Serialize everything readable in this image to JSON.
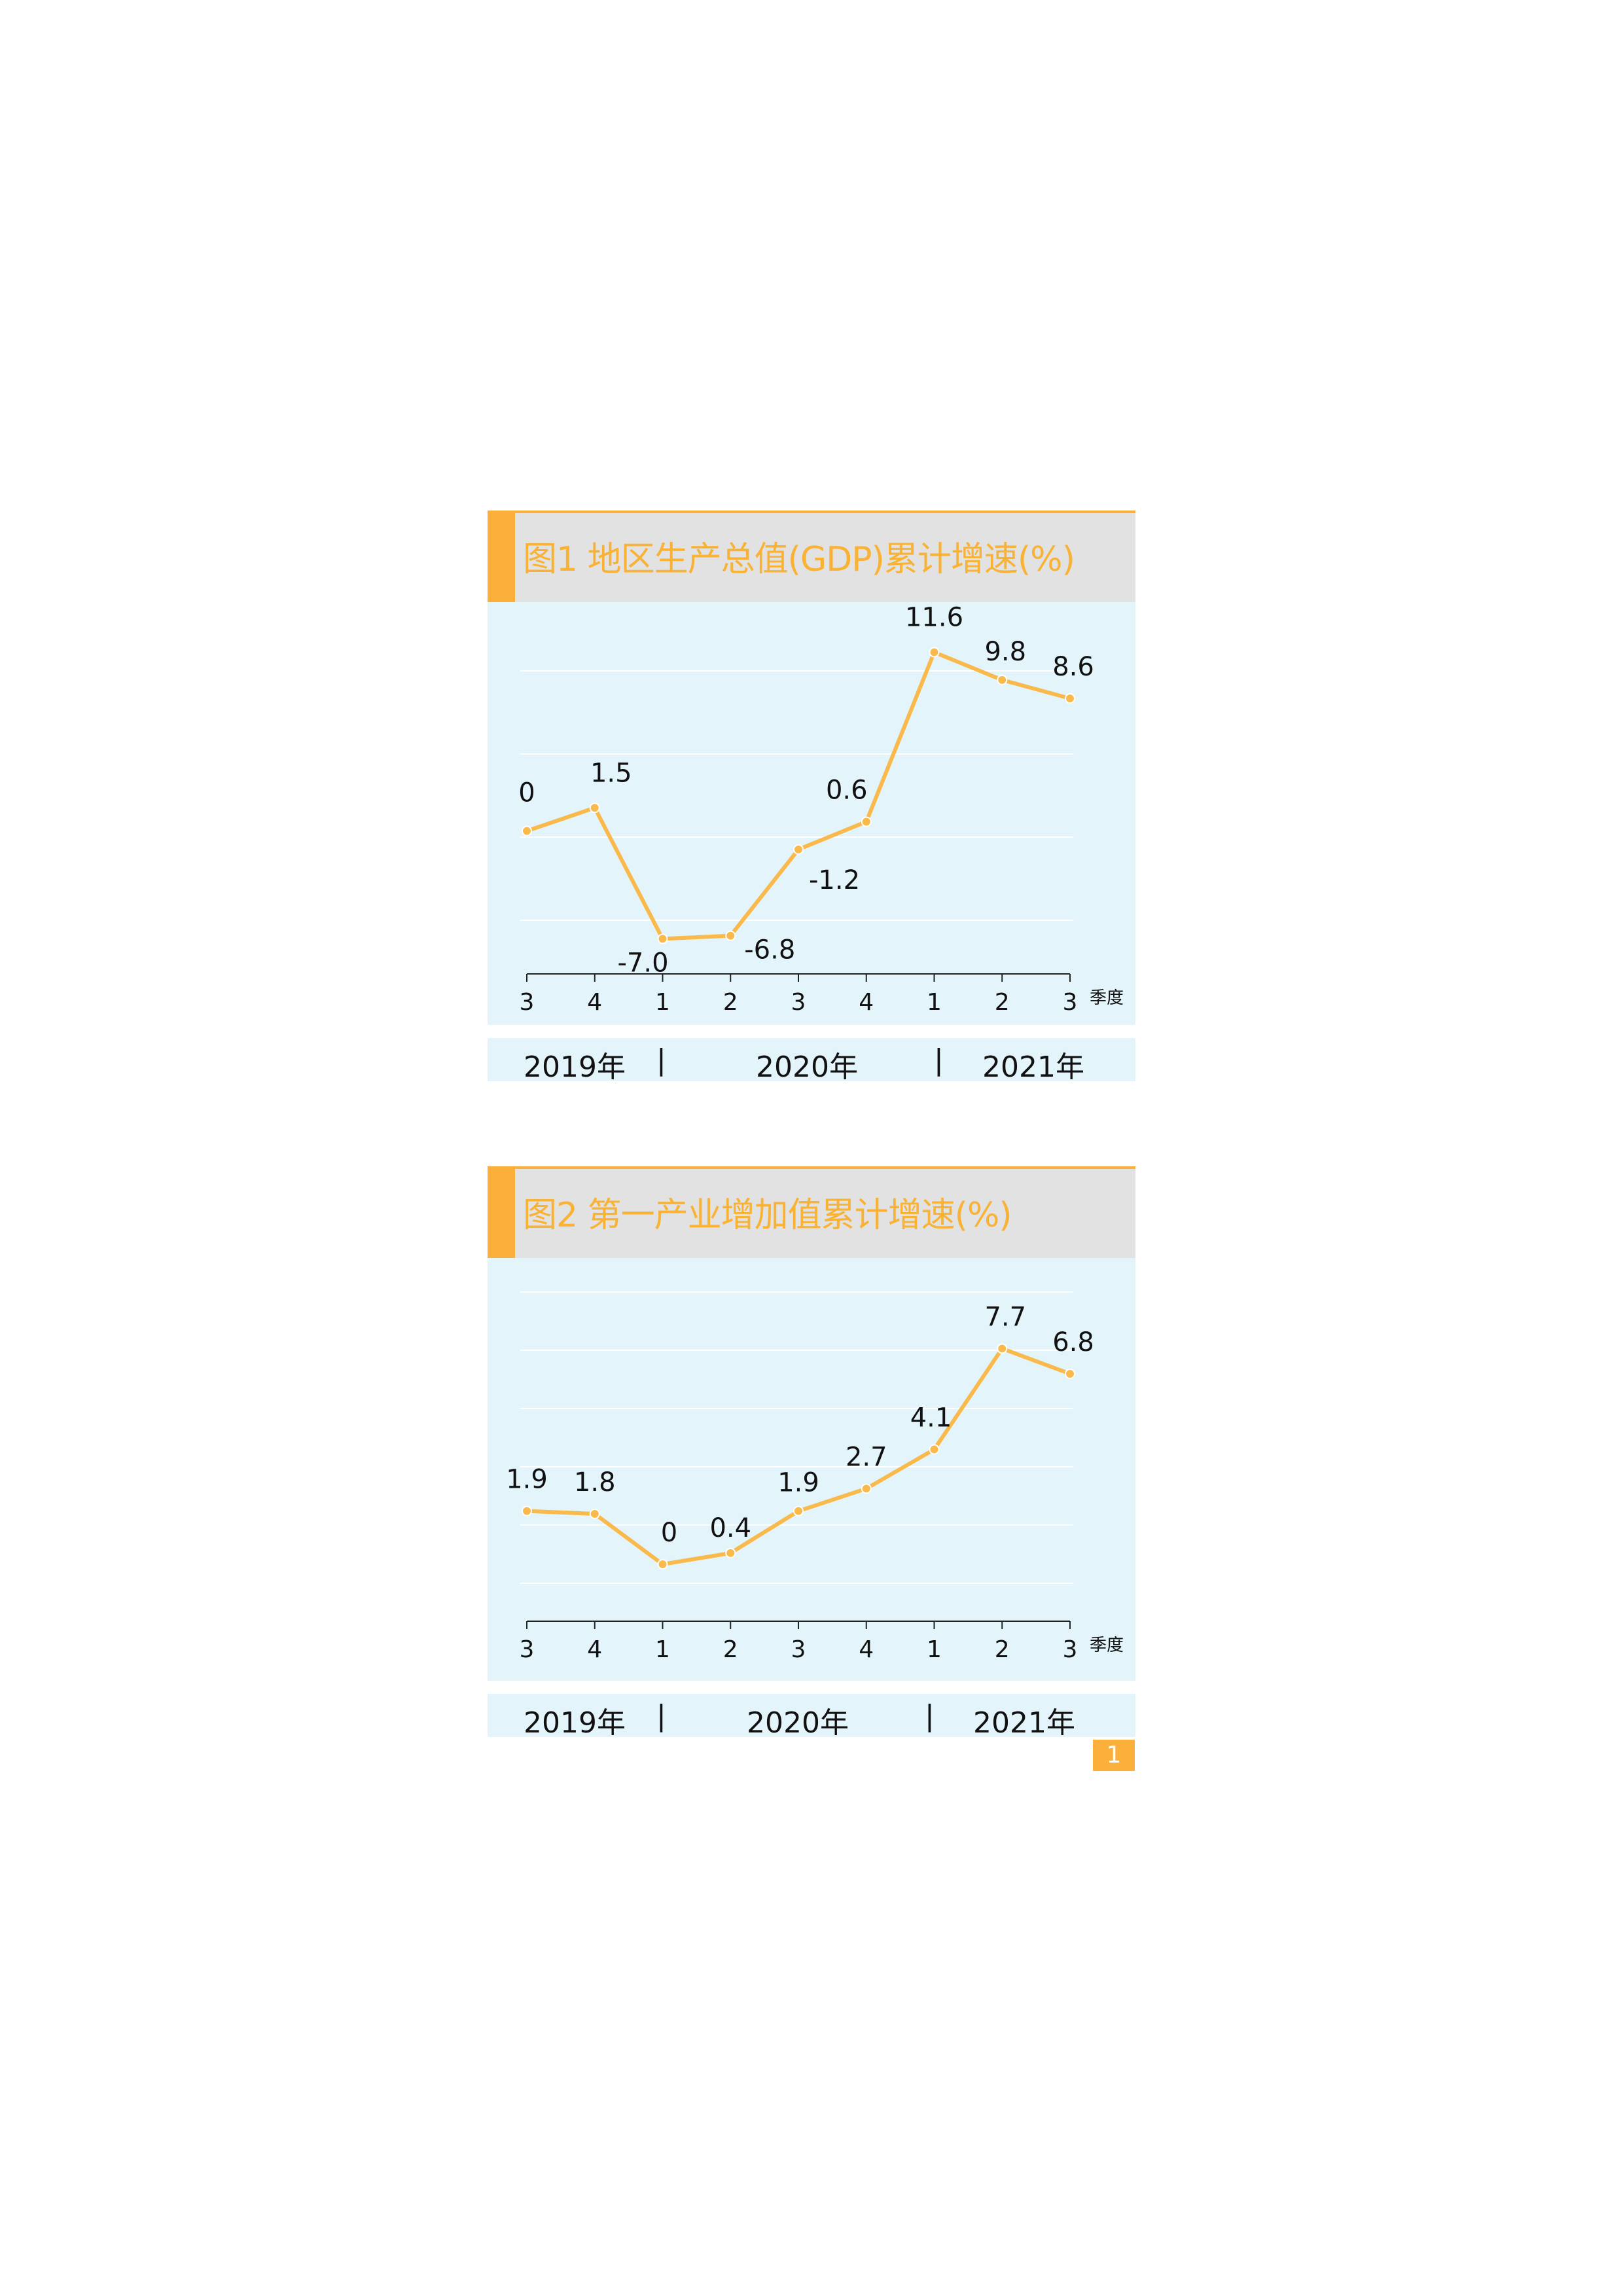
{
  "chart_data": [
    {
      "type": "line",
      "title": "图1  地区生产总值(GDP)累计增速(%)",
      "categories": [
        "3",
        "4",
        "1",
        "2",
        "3",
        "4",
        "1",
        "2",
        "3"
      ],
      "x_unit": "季度",
      "years": [
        "2019年",
        "2020年",
        "2021年"
      ],
      "values": [
        0,
        1.5,
        -7.0,
        -6.8,
        -1.2,
        0.6,
        11.6,
        9.8,
        8.6
      ],
      "value_labels": [
        "0",
        "1.5",
        "-7.0",
        "-6.8",
        "-1.2",
        "0.6",
        "11.6",
        "9.8",
        "8.6"
      ],
      "ylim": [
        -10,
        14
      ],
      "grid": true,
      "line_color": "#f9b94b"
    },
    {
      "type": "line",
      "title": "图2   第一产业增加值累计增速(%)",
      "categories": [
        "3",
        "4",
        "1",
        "2",
        "3",
        "4",
        "1",
        "2",
        "3"
      ],
      "x_unit": "季度",
      "years": [
        "2019年",
        "2020年",
        "2021年"
      ],
      "values": [
        1.9,
        1.8,
        0,
        0.4,
        1.9,
        2.7,
        4.1,
        7.7,
        6.8
      ],
      "value_labels": [
        "1.9",
        "1.8",
        "0",
        "0.4",
        "1.9",
        "2.7",
        "4.1",
        "7.7",
        "6.8"
      ],
      "ylim": [
        -2.5,
        10
      ],
      "grid": true,
      "line_color": "#f9b94b"
    }
  ],
  "page_number": "1",
  "colors": {
    "accent": "#fbb03b",
    "title_text": "#f9b233",
    "plot_bg": "#e3f4fb",
    "title_bg": "#e2e2e2",
    "line": "#f9b94b"
  }
}
